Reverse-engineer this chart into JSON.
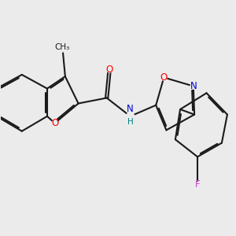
{
  "bg_color": "#ebebeb",
  "bond_color": "#1a1a1a",
  "o_color": "#ff0000",
  "n_color": "#0000cc",
  "f_color": "#cc44cc",
  "teal_color": "#008080",
  "bond_width": 1.5,
  "figsize": [
    3.0,
    3.0
  ],
  "dpi": 100,
  "xlim": [
    -2.7,
    1.8
  ],
  "ylim": [
    -1.1,
    1.5
  ]
}
